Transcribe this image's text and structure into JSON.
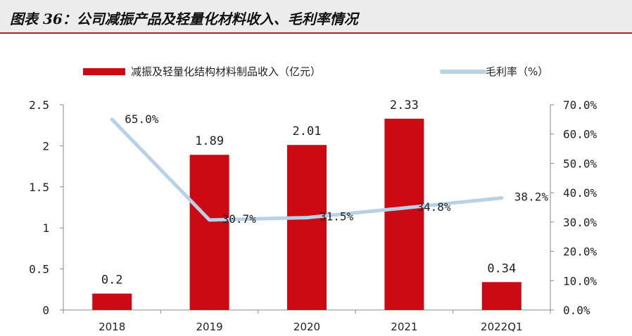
{
  "figure": {
    "title": "图表 36：公司减振产品及轻量化材料收入、毛利率情况"
  },
  "colors": {
    "bar": "#cc0a14",
    "line": "#b7d1e6",
    "text": "#222222",
    "axis": "#8a8a8a"
  },
  "chart_data": {
    "type": "bar",
    "categories": [
      "2018",
      "2019",
      "2020",
      "2021",
      "2022Q1"
    ],
    "series": [
      {
        "name": "减振及轻量化结构材料制品收入（亿元）",
        "kind": "bar",
        "axis": "left",
        "values": [
          0.2,
          1.89,
          2.01,
          2.33,
          0.34
        ],
        "labels": [
          "0.2",
          "1.89",
          "2.01",
          "2.33",
          "0.34"
        ]
      },
      {
        "name": "毛利率（%）",
        "kind": "line",
        "axis": "right",
        "values": [
          65.0,
          30.7,
          31.5,
          34.8,
          38.2
        ],
        "labels": [
          "65.0%",
          "30.7%",
          "31.5%",
          "34.8%",
          "38.2%"
        ]
      }
    ],
    "y_left": {
      "ylim": [
        0,
        2.5
      ],
      "ticks": [
        0,
        0.5,
        1,
        1.5,
        2,
        2.5
      ],
      "tick_labels": [
        "0",
        "0.5",
        "1",
        "1.5",
        "2",
        "2.5"
      ]
    },
    "y_right": {
      "ylim": [
        0,
        70
      ],
      "ticks": [
        0,
        10,
        20,
        30,
        40,
        50,
        60,
        70
      ],
      "tick_labels": [
        "0.0%",
        "10.0%",
        "20.0%",
        "30.0%",
        "40.0%",
        "50.0%",
        "60.0%",
        "70.0%"
      ]
    },
    "legend": "top-center",
    "grid": false
  }
}
